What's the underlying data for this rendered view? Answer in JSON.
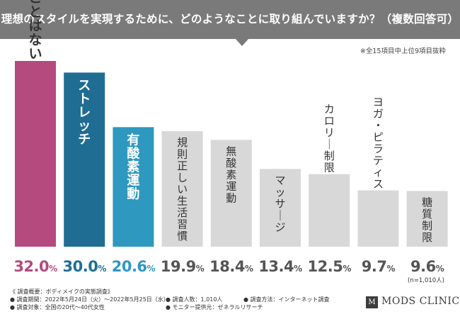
{
  "header": {
    "title": "理想のスタイルを実現するために、どのようなことに取り組んでいますか？（複数回答可）"
  },
  "note": "※全15項目中上位9項目抜粋",
  "n_label": "(n=1,010人)",
  "colors": {
    "highlight_1": "#b54a7e",
    "highlight_2": "#1f6d93",
    "highlight_3": "#2e98bf",
    "other": "#d8d8d8",
    "header_bg": "#7a7a7a"
  },
  "chart_data": {
    "type": "bar",
    "title": "理想のスタイルを実現するために、どのようなことに取り組んでいますか？（複数回答可）",
    "unit": "%",
    "ylim": [
      0,
      32
    ],
    "categories": [
      "特に取り組んでいることはない",
      "ストレッチ",
      "有酸素運動",
      "規則正しい生活習慣",
      "無酸素運動",
      "マッサージ",
      "カロリー制限",
      "ヨガ・ピラティス",
      "糖質制限"
    ],
    "values": [
      32.0,
      30.0,
      20.6,
      19.9,
      18.4,
      13.4,
      12.5,
      9.7,
      9.6
    ],
    "value_labels": [
      "32.0",
      "30.0",
      "20.6",
      "19.9",
      "18.4",
      "13.4",
      "12.5",
      "9.7",
      "9.6"
    ],
    "series_colors": [
      "#b54a7e",
      "#1f6d93",
      "#2e98bf",
      "#d8d8d8",
      "#d8d8d8",
      "#d8d8d8",
      "#d8d8d8",
      "#d8d8d8",
      "#d8d8d8"
    ],
    "label_colors": [
      "#ffffff",
      "#ffffff",
      "#ffffff",
      "#333333",
      "#333333",
      "#333333",
      "#333333",
      "#333333",
      "#333333"
    ],
    "value_colors": [
      "#b54a7e",
      "#1f6d93",
      "#2e98bf",
      "#555555",
      "#555555",
      "#555555",
      "#555555",
      "#555555",
      "#555555"
    ]
  },
  "survey": {
    "heading": "《 調査概要：ボディメイクの実態調査》",
    "period": "● 調査期間：2022年5月24日（火）〜2022年5月25日（水）",
    "people": "● 調査人数：1,010人",
    "method": "● 調査方法：インターネット調査",
    "target": "● 調査対象：全国の20代〜40代女性",
    "provider": "● モニター提供元：ゼネラルリサーチ"
  },
  "brand": {
    "mark": "M",
    "name": "MODS CLINIC"
  }
}
